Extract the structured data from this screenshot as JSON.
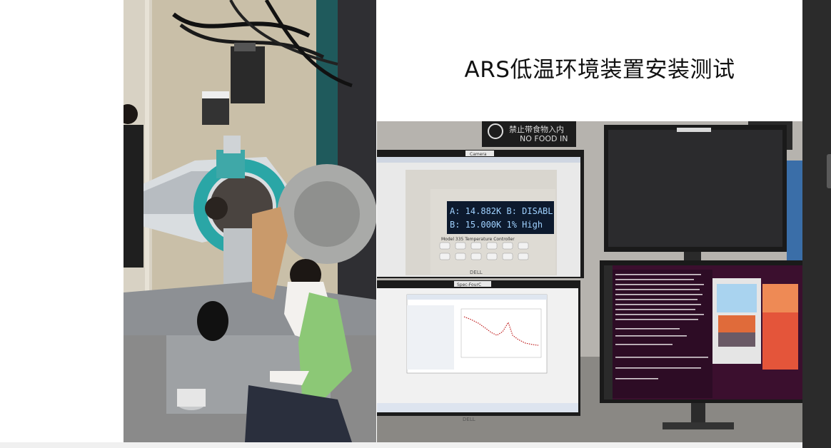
{
  "slide": {
    "title": "ARS低温环境装置安装测试"
  },
  "photos": {
    "left_icon": "lab-photo",
    "right_icon": "monitor-photo"
  },
  "right_photo": {
    "sign_cn": "禁止带食物入内",
    "sign_en": "NO FOOD IN",
    "screen_label_camera": "Camera",
    "screen_label_spec": "Spec-FourC",
    "display_row1": "A: 14.882K  B: DISABL",
    "display_row2": "B: 15.000K     1% High",
    "controller_model": "Model 335 Temperature Controller",
    "monitor_brand_1": "DELL",
    "monitor_brand_2": "DELL"
  },
  "colors": {
    "slide_bg": "#ffffff",
    "dark_bar": "#2b2b2b",
    "title_text": "#111111"
  }
}
